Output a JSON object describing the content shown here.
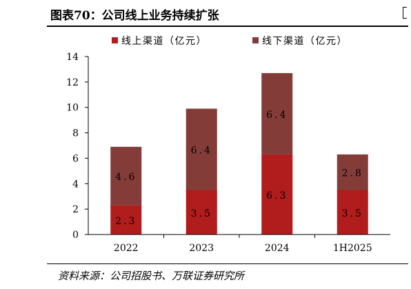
{
  "figure": {
    "title": "图表70：公司线上业务持续扩张",
    "source": "资料来源：公司招股书、万联证券研究所"
  },
  "chart_data": {
    "type": "bar",
    "stacked": true,
    "categories": [
      "2022",
      "2023",
      "2024",
      "1H2025"
    ],
    "series": [
      {
        "name": "线上渠道（亿元）",
        "values": [
          2.3,
          3.5,
          6.3,
          3.5
        ],
        "color": "#b11c1c"
      },
      {
        "name": "线下渠道（亿元）",
        "values": [
          4.6,
          6.4,
          6.4,
          2.8
        ],
        "color": "#843c39"
      }
    ],
    "data_labels": [
      [
        "2.3",
        "3.5",
        "6.3",
        "3.5"
      ],
      [
        "4.6",
        "6.4",
        "6.4",
        "2.8"
      ]
    ],
    "ylim": [
      0,
      14
    ],
    "yticks": [
      "0",
      "2",
      "4",
      "6",
      "8",
      "10",
      "12",
      "14"
    ],
    "ytick_values": [
      0,
      2,
      4,
      6,
      8,
      10,
      12,
      14
    ],
    "legend_position": "top",
    "grid": false
  }
}
